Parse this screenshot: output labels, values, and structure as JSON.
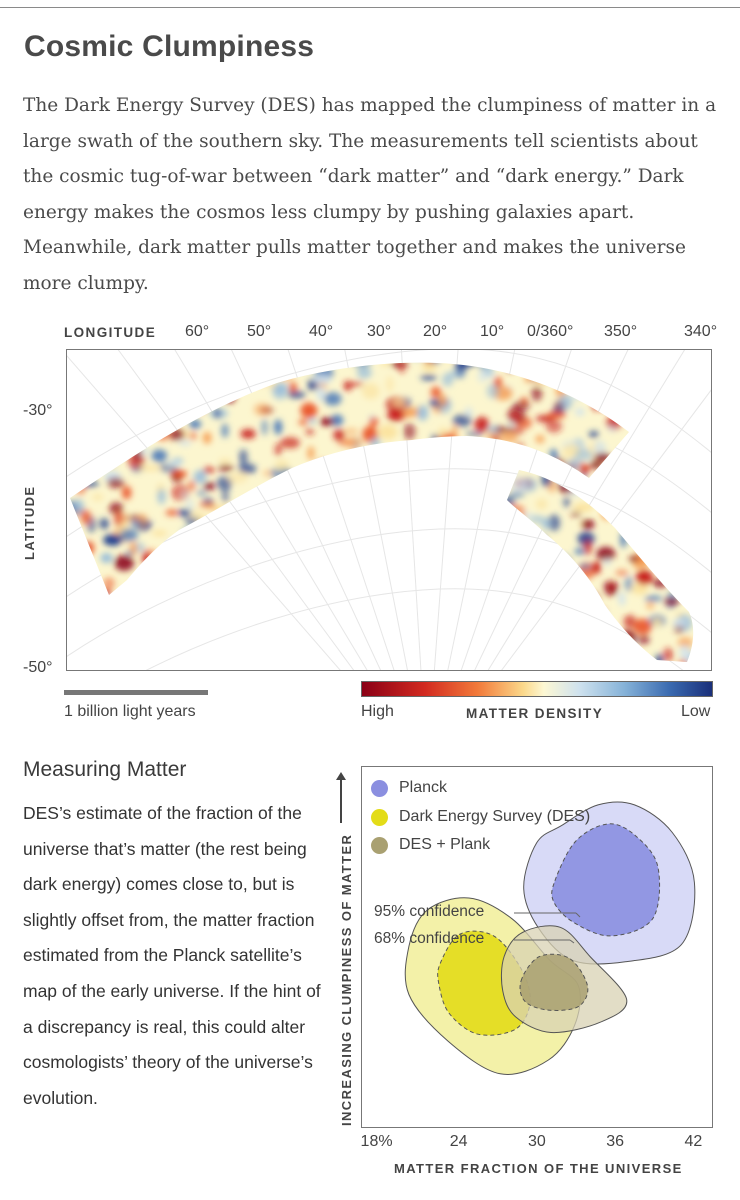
{
  "title": "Cosmic Clumpiness",
  "intro": "The Dark Energy Survey (DES) has mapped the clumpiness of matter in a large swath of the southern sky. The measurements tell scientists about the cosmic tug-of-war between “dark matter” and “dark energy.” Dark energy makes the cosmos less clumpy by pushing galaxies apart. Meanwhile, dark matter pulls matter together and makes the universe more clumpy.",
  "map": {
    "longitude_label": "LONGITUDE",
    "longitude_ticks": [
      "60°",
      "50°",
      "40°",
      "30°",
      "20°",
      "10°",
      "0/360°",
      "350°",
      "340°"
    ],
    "latitude_label": "LATITUDE",
    "latitude_ticks": [
      "-30°",
      "-50°"
    ],
    "scale_label": "1 billion light years",
    "legend": {
      "high": "High",
      "title": "MATTER DENSITY",
      "low": "Low"
    },
    "colors": {
      "high": "#8a0016",
      "mid": "#fdf8d4",
      "low": "#1a2f7a"
    }
  },
  "section": {
    "title": "Measuring Matter",
    "text": "DES’s estimate of the fraction of the universe that’s matter (the rest being dark energy) comes close to, but is slightly offset from, the matter fraction estimated from the Planck satellite’s map of the early universe. If the hint of a discrepancy is real, this could alter cosmologists’ theory of the universe’s evolution."
  },
  "chart_data": {
    "type": "contour",
    "xlabel": "MATTER FRACTION OF THE UNIVERSE",
    "ylabel": "INCREASING CLUMPINESS OF MATTER",
    "x_ticks": [
      "18%",
      "24",
      "30",
      "36",
      "42"
    ],
    "x_tick_values": [
      18,
      24,
      30,
      36,
      42
    ],
    "xlim": [
      16.5,
      43.5
    ],
    "legend": [
      {
        "name": "Planck",
        "color": "#8b8fe0"
      },
      {
        "name": "Dark Energy Survey (DES)",
        "color": "#e3dc18"
      },
      {
        "name": "DES + Plank",
        "color": "#a9a071"
      }
    ],
    "annotations": [
      "95% confidence",
      "68% confidence"
    ],
    "contours": [
      {
        "series": "Planck",
        "level": "95%",
        "color": "#d4d6f6",
        "points": [
          [
            29.9,
            0.06
          ],
          [
            31.8,
            0.16
          ],
          [
            34.6,
            0.28
          ],
          [
            37.4,
            0.28
          ],
          [
            40.3,
            0.12
          ],
          [
            42.0,
            -0.17
          ],
          [
            41.0,
            -0.53
          ],
          [
            36.7,
            -0.63
          ],
          [
            32.6,
            -0.62
          ],
          [
            30.0,
            -0.43
          ],
          [
            28.9,
            -0.2
          ]
        ]
      },
      {
        "series": "Planck",
        "level": "68%",
        "color": "#8b8fe0",
        "points": [
          [
            31.3,
            -0.16
          ],
          [
            32.9,
            0.07
          ],
          [
            35.4,
            0.17
          ],
          [
            37.5,
            0.1
          ],
          [
            39.2,
            -0.08
          ],
          [
            38.8,
            -0.38
          ],
          [
            35.6,
            -0.48
          ],
          [
            32.7,
            -0.4
          ],
          [
            31.2,
            -0.28
          ]
        ]
      },
      {
        "series": "DES",
        "level": "95%",
        "color": "#f2ef9f",
        "points": [
          [
            20.1,
            -0.54
          ],
          [
            21.5,
            -0.33
          ],
          [
            24.7,
            -0.26
          ],
          [
            28.0,
            -0.38
          ],
          [
            30.9,
            -0.62
          ],
          [
            33.1,
            -0.77
          ],
          [
            32.8,
            -1.0
          ],
          [
            30.8,
            -1.2
          ],
          [
            27.1,
            -1.28
          ],
          [
            23.1,
            -1.09
          ],
          [
            20.1,
            -0.82
          ]
        ]
      },
      {
        "series": "DES",
        "level": "68%",
        "color": "#e3dc18",
        "points": [
          [
            22.5,
            -0.64
          ],
          [
            24.0,
            -0.47
          ],
          [
            26.6,
            -0.48
          ],
          [
            28.7,
            -0.67
          ],
          [
            29.4,
            -0.86
          ],
          [
            28.3,
            -1.02
          ],
          [
            25.4,
            -1.05
          ],
          [
            23.2,
            -0.93
          ],
          [
            22.4,
            -0.76
          ]
        ]
      },
      {
        "series": "DES + Plank",
        "level": "95%",
        "color": "#d8d2b3",
        "points": [
          [
            27.4,
            -0.6
          ],
          [
            28.8,
            -0.46
          ],
          [
            31.7,
            -0.43
          ],
          [
            34.0,
            -0.6
          ],
          [
            36.8,
            -0.85
          ],
          [
            34.8,
            -0.98
          ],
          [
            31.0,
            -1.04
          ],
          [
            28.3,
            -0.95
          ],
          [
            27.3,
            -0.8
          ]
        ]
      },
      {
        "series": "DES + Plank",
        "level": "68%",
        "color": "#a9a071",
        "points": [
          [
            28.7,
            -0.74
          ],
          [
            30.1,
            -0.6
          ],
          [
            32.4,
            -0.61
          ],
          [
            33.8,
            -0.77
          ],
          [
            33.1,
            -0.89
          ],
          [
            30.8,
            -0.91
          ],
          [
            29.0,
            -0.86
          ]
        ]
      }
    ]
  }
}
